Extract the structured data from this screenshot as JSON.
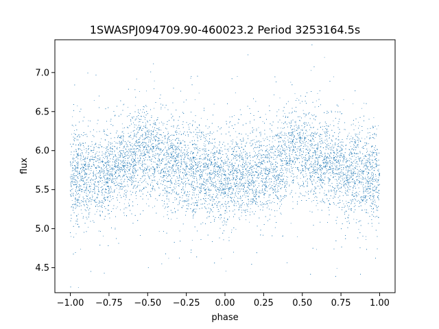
{
  "chart_data": {
    "type": "scatter",
    "title": "1SWASPJ094709.90-460023.2 Period 3253164.5s",
    "xlabel": "phase",
    "ylabel": "flux",
    "xlim": [
      -1.1,
      1.1
    ],
    "ylim": [
      4.18,
      7.42
    ],
    "xticks": [
      -1.0,
      -0.75,
      -0.5,
      -0.25,
      0.0,
      0.25,
      0.5,
      0.75,
      1.0
    ],
    "xtick_labels": [
      "−1.00",
      "−0.75",
      "−0.50",
      "−0.25",
      "0.00",
      "0.25",
      "0.50",
      "0.75",
      "1.00"
    ],
    "yticks": [
      4.5,
      5.0,
      5.5,
      6.0,
      6.5,
      7.0
    ],
    "ytick_labels": [
      "4.5",
      "5.0",
      "5.5",
      "6.0",
      "6.5",
      "7.0"
    ],
    "grid": false,
    "legend": "none",
    "marker_color": "#1f77b4",
    "series": [
      {
        "x_range": [
          -1.0,
          1.0
        ],
        "phase_profile": {
          "phase": [
            0.0,
            0.1,
            0.2,
            0.3,
            0.4,
            0.45,
            0.5,
            0.55,
            0.6,
            0.7,
            0.8,
            0.9,
            1.0
          ],
          "mean_flux": [
            5.65,
            5.68,
            5.7,
            5.78,
            5.92,
            6.02,
            6.0,
            5.95,
            5.88,
            5.8,
            5.72,
            5.68,
            5.65
          ]
        },
        "scatter_sigma": 0.28,
        "n_points": 16000
      }
    ]
  }
}
